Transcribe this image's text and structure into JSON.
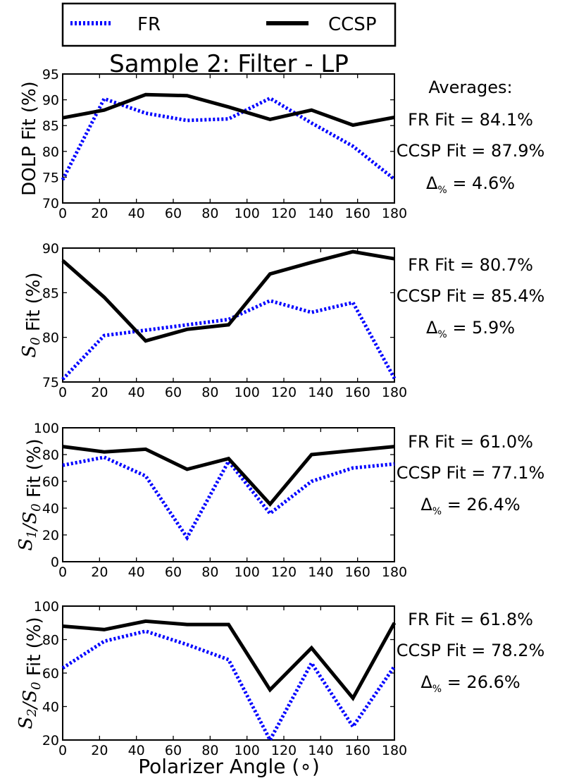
{
  "figure_title": "Sample 2: Filter - LP",
  "xlabel": "Polarizer Angle (∘)",
  "legend": [
    {
      "label": "FR",
      "style": "dotted",
      "color": "#0000ff"
    },
    {
      "label": "CCSP",
      "style": "solid",
      "color": "#000000"
    }
  ],
  "colors": {
    "fr": "#0000ff",
    "ccsp": "#000000"
  },
  "averages_heading": "Averages:",
  "chart_data": [
    {
      "type": "line",
      "ylabel": "DOLP Fit (%)",
      "ylabel_parts": [
        {
          "text": "DOLP Fit (%)",
          "math": false
        }
      ],
      "x": [
        0,
        22.5,
        45,
        67.5,
        90,
        112.5,
        135,
        157.5,
        180
      ],
      "series": [
        {
          "name": "FR",
          "values": [
            74.5,
            90.2,
            87.4,
            86.0,
            86.3,
            90.3,
            85.5,
            81.0,
            74.6
          ]
        },
        {
          "name": "CCSP",
          "values": [
            86.5,
            88.0,
            91.0,
            90.8,
            88.6,
            86.2,
            88.0,
            85.1,
            86.6
          ]
        }
      ],
      "xlim": [
        0,
        180
      ],
      "ylim": [
        70,
        95
      ],
      "xticks": [
        0,
        20,
        40,
        60,
        80,
        100,
        120,
        140,
        160,
        180
      ],
      "yticks": [
        70,
        75,
        80,
        85,
        90,
        95
      ],
      "annotations": [
        "FR Fit = 84.1%",
        "CCSP Fit = 87.9%",
        "Δ% = 4.6%"
      ],
      "fr_fit": "FR Fit = 84.1%",
      "ccsp_fit": "CCSP Fit = 87.9%",
      "delta": "= 4.6%"
    },
    {
      "type": "line",
      "ylabel": "S0 Fit (%)",
      "ylabel_parts": [
        {
          "text": "S",
          "math": true,
          "sub": "0"
        },
        {
          "text": " Fit (%)",
          "math": false
        }
      ],
      "x": [
        0,
        22.5,
        45,
        67.5,
        90,
        112.5,
        135,
        157.5,
        180
      ],
      "series": [
        {
          "name": "FR",
          "values": [
            75.3,
            80.2,
            80.8,
            81.4,
            82.0,
            84.1,
            82.8,
            83.9,
            75.4
          ]
        },
        {
          "name": "CCSP",
          "values": [
            88.6,
            84.5,
            79.6,
            80.9,
            81.4,
            87.1,
            88.4,
            89.6,
            88.8
          ]
        }
      ],
      "xlim": [
        0,
        180
      ],
      "ylim": [
        75,
        90
      ],
      "xticks": [
        0,
        20,
        40,
        60,
        80,
        100,
        120,
        140,
        160,
        180
      ],
      "yticks": [
        75,
        80,
        85,
        90
      ],
      "annotations": [
        "FR Fit = 80.7%",
        "CCSP Fit = 85.4%",
        "Δ% = 5.9%"
      ],
      "fr_fit": "FR Fit = 80.7%",
      "ccsp_fit": "CCSP Fit = 85.4%",
      "delta": "= 5.9%"
    },
    {
      "type": "line",
      "ylabel": "S1/S0 Fit (%)",
      "ylabel_parts": [
        {
          "text": "S",
          "math": true,
          "sub": "1"
        },
        {
          "text": "/",
          "math": true
        },
        {
          "text": "S",
          "math": true,
          "sub": "0"
        },
        {
          "text": " Fit (%)",
          "math": false
        }
      ],
      "x": [
        0,
        22.5,
        45,
        67.5,
        90,
        112.5,
        135,
        157.5,
        180
      ],
      "series": [
        {
          "name": "FR",
          "values": [
            72,
            78,
            64,
            18,
            75,
            36,
            60,
            70,
            73
          ]
        },
        {
          "name": "CCSP",
          "values": [
            86,
            82,
            84,
            69,
            77,
            43,
            80,
            83,
            86
          ]
        }
      ],
      "xlim": [
        0,
        180
      ],
      "ylim": [
        0,
        100
      ],
      "xticks": [
        0,
        20,
        40,
        60,
        80,
        100,
        120,
        140,
        160,
        180
      ],
      "yticks": [
        0,
        20,
        40,
        60,
        80,
        100
      ],
      "annotations": [
        "FR Fit = 61.0%",
        "CCSP Fit = 77.1%",
        "Δ% = 26.4%"
      ],
      "fr_fit": "FR Fit = 61.0%",
      "ccsp_fit": "CCSP Fit = 77.1%",
      "delta": "= 26.4%"
    },
    {
      "type": "line",
      "ylabel": "S2/S0 Fit (%)",
      "ylabel_parts": [
        {
          "text": "S",
          "math": true,
          "sub": "2"
        },
        {
          "text": "/",
          "math": true
        },
        {
          "text": "S",
          "math": true,
          "sub": "0"
        },
        {
          "text": " Fit (%)",
          "math": false
        }
      ],
      "x": [
        0,
        22.5,
        45,
        67.5,
        90,
        112.5,
        135,
        157.5,
        180
      ],
      "series": [
        {
          "name": "FR",
          "values": [
            63,
            79,
            85,
            77,
            68,
            20,
            66,
            28,
            64
          ]
        },
        {
          "name": "CCSP",
          "values": [
            88,
            86,
            91,
            89,
            89,
            50,
            75,
            45,
            90
          ]
        }
      ],
      "xlim": [
        0,
        180
      ],
      "ylim": [
        20,
        100
      ],
      "xticks": [
        0,
        20,
        40,
        60,
        80,
        100,
        120,
        140,
        160,
        180
      ],
      "yticks": [
        20,
        40,
        60,
        80,
        100
      ],
      "annotations": [
        "FR Fit = 61.8%",
        "CCSP Fit = 78.2%",
        "Δ% = 26.6%"
      ],
      "fr_fit": "FR Fit = 61.8%",
      "ccsp_fit": "CCSP Fit = 78.2%",
      "delta": "= 26.6%"
    }
  ]
}
